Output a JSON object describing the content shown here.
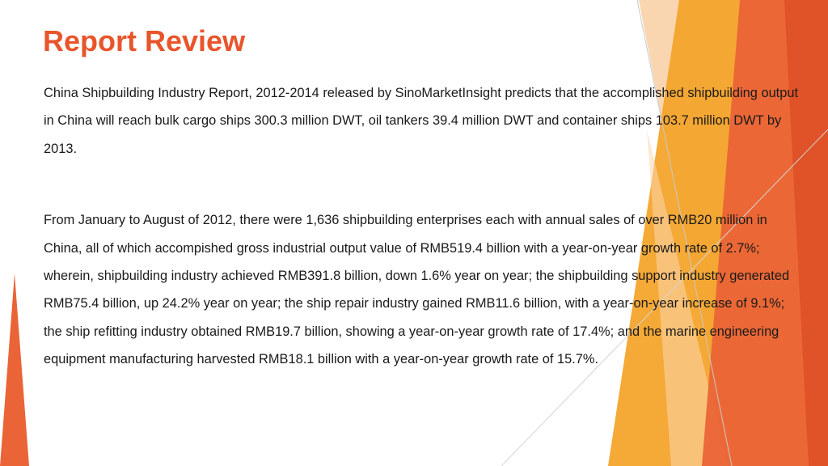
{
  "slide": {
    "title": "Report Review",
    "paragraphs": [
      "China Shipbuilding Industry Report, 2012-2014 released by SinoMarketInsight predicts that the accomplished shipbuilding output in China will reach bulk cargo ships 300.3 million DWT, oil tankers 39.4 million DWT and container ships 103.7 million DWT by 2013.",
      "From January to August of 2012, there were 1,636 shipbuilding enterprises each with annual sales of over RMB20 million in China, all of which accompished gross industrial output value of RMB519.4 billion with a year-on-year growth rate of 2.7%; wherein, shipbuilding industry achieved RMB391.8 billion, down 1.6% year on year; the shipbuilding support industry generated RMB75.4 billion, up 24.2% year on year; the ship repair industry gained RMB11.6 billion, with a year-on-year increase of 9.1%; the ship refitting industry obtained RMB19.7 billion, showing a year-on-year growth rate of 17.4%; and the marine engineering equipment manufacturing harvested RMB18.1 billion with a year-on-year growth rate of 15.7%."
    ]
  },
  "theme": {
    "title_color": "#e8552b",
    "accent_orange": "#f2a228",
    "accent_red": "#e8552b",
    "accent_light": "#f8c892"
  }
}
